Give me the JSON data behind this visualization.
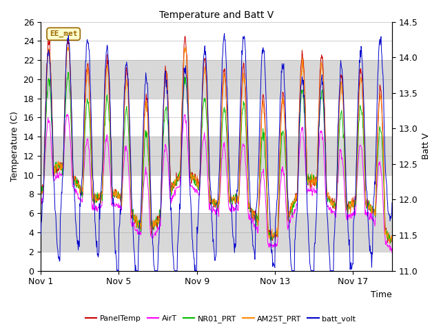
{
  "title": "Temperature and Batt V",
  "xlabel": "Time",
  "ylabel_left": "Temperature (C)",
  "ylabel_right": "Batt V",
  "ylim_left": [
    0,
    26
  ],
  "ylim_right": [
    11.0,
    14.5
  ],
  "legend_labels": [
    "PanelTemp",
    "AirT",
    "NR01_PRT",
    "AM25T_PRT",
    "batt_volt"
  ],
  "legend_colors": [
    "#cc0000",
    "#ff00ff",
    "#00bb00",
    "#ff8800",
    "#0000cc"
  ],
  "ee_met_label": "EE_met",
  "ee_met_bg": "#ffffcc",
  "ee_met_border": "#996600",
  "band_color": "#d8d8d8",
  "xtick_labels": [
    "Nov 1",
    "Nov 5",
    "Nov 9",
    "Nov 13",
    "Nov 17"
  ],
  "xtick_positions": [
    0,
    4,
    8,
    12,
    16
  ],
  "n_days": 18,
  "background_color": "#ffffff",
  "band_ranges": [
    [
      2,
      6
    ],
    [
      10,
      14
    ],
    [
      18,
      22
    ]
  ]
}
